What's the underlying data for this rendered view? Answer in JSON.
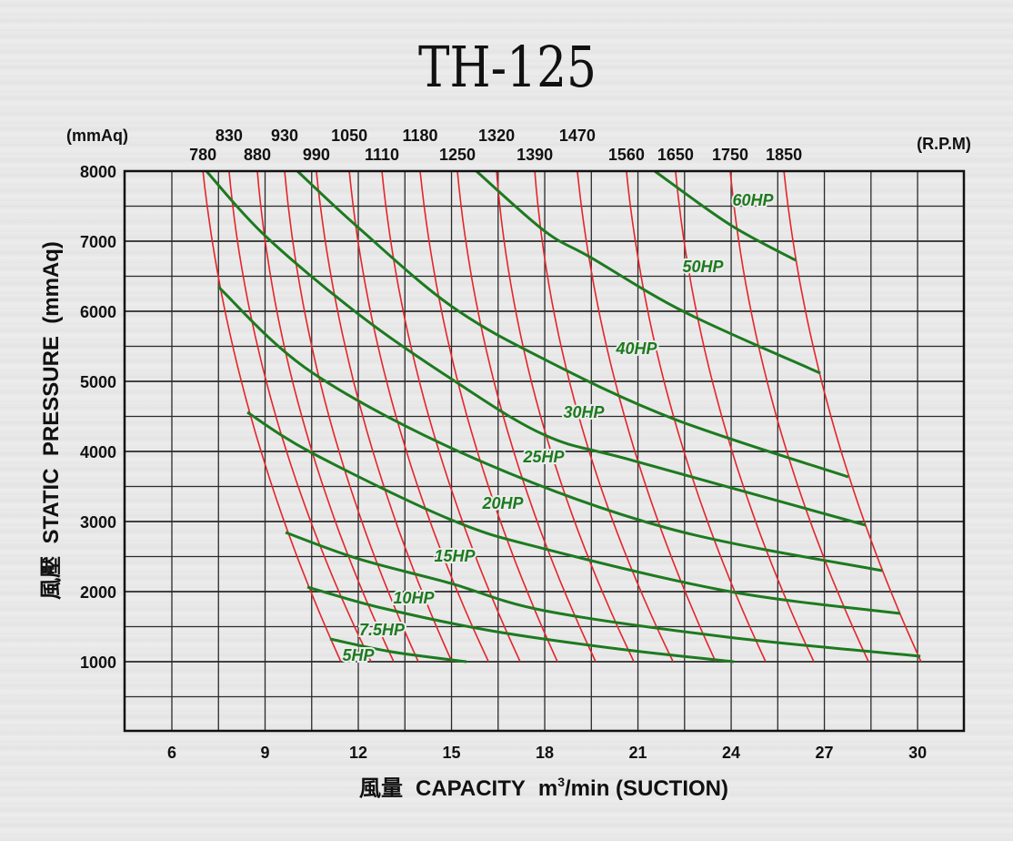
{
  "chart_data": {
    "type": "line",
    "title": "TH-125",
    "xlabel": "風量  CAPACITY  m³/min (SUCTION)",
    "xlabel_parts": {
      "cjk": "風量",
      "text": "CAPACITY",
      "unit_pre": "m",
      "unit_sup": "3",
      "unit_post": "/min (SUCTION)"
    },
    "ylabel": "風壓  STATIC  PRESSURE  (mmAq)",
    "y_unit_label": "(mmAq)",
    "rpm_unit_label": "(R.P.M)",
    "xlim": [
      4.5,
      31.5
    ],
    "ylim": [
      0,
      8000
    ],
    "x_ticks": [
      6,
      9,
      12,
      15,
      18,
      21,
      24,
      27,
      30
    ],
    "y_ticks": [
      1000,
      2000,
      3000,
      4000,
      5000,
      6000,
      7000,
      8000
    ],
    "grid": {
      "x_step": 1.5,
      "y_step": 500
    },
    "colors": {
      "rpm": "#e3262b",
      "hp": "#1d7a1f",
      "grid": "#2a2a2a"
    },
    "rpm_curves": [
      {
        "rpm": "780",
        "points": [
          [
            7.0,
            8000
          ],
          [
            8.87,
            4000
          ],
          [
            11.44,
            1000
          ]
        ]
      },
      {
        "rpm": "830",
        "points": [
          [
            7.84,
            8000
          ],
          [
            9.69,
            4000
          ],
          [
            12.41,
            1000
          ]
        ]
      },
      {
        "rpm": "880",
        "points": [
          [
            8.75,
            8000
          ],
          [
            10.51,
            4000
          ],
          [
            13.14,
            1000
          ]
        ]
      },
      {
        "rpm": "930",
        "points": [
          [
            9.63,
            8000
          ],
          [
            11.38,
            4000
          ],
          [
            13.93,
            1000
          ]
        ]
      },
      {
        "rpm": "990",
        "points": [
          [
            10.65,
            8000
          ],
          [
            12.47,
            4000
          ],
          [
            15.01,
            1000
          ]
        ]
      },
      {
        "rpm": "1050",
        "points": [
          [
            11.71,
            8000
          ],
          [
            13.55,
            4000
          ],
          [
            16.19,
            1000
          ]
        ]
      },
      {
        "rpm": "1110",
        "points": [
          [
            12.76,
            8000
          ],
          [
            14.6,
            4000
          ],
          [
            17.21,
            1000
          ]
        ]
      },
      {
        "rpm": "1180",
        "points": [
          [
            13.99,
            8000
          ],
          [
            15.83,
            4000
          ],
          [
            18.41,
            1000
          ]
        ]
      },
      {
        "rpm": "1250",
        "points": [
          [
            15.19,
            8000
          ],
          [
            17.0,
            4000
          ],
          [
            19.64,
            1000
          ]
        ]
      },
      {
        "rpm": "1320",
        "points": [
          [
            16.45,
            8000
          ],
          [
            18.2,
            4000
          ],
          [
            20.87,
            1000
          ]
        ]
      },
      {
        "rpm": "1390",
        "points": [
          [
            17.68,
            8000
          ],
          [
            19.43,
            4000
          ],
          [
            22.13,
            1000
          ]
        ]
      },
      {
        "rpm": "1470",
        "points": [
          [
            19.05,
            8000
          ],
          [
            20.9,
            4000
          ],
          [
            23.5,
            1000
          ]
        ]
      },
      {
        "rpm": "1560",
        "points": [
          [
            20.63,
            8000
          ],
          [
            22.48,
            4000
          ],
          [
            25.11,
            1000
          ]
        ]
      },
      {
        "rpm": "1650",
        "points": [
          [
            22.21,
            8000
          ],
          [
            24.03,
            4000
          ],
          [
            26.66,
            1000
          ]
        ]
      },
      {
        "rpm": "1750",
        "points": [
          [
            23.97,
            8000
          ],
          [
            25.79,
            4000
          ],
          [
            28.42,
            1000
          ]
        ]
      },
      {
        "rpm": "1850",
        "points": [
          [
            25.7,
            8000
          ],
          [
            27.54,
            4000
          ],
          [
            30.11,
            1000
          ]
        ]
      }
    ],
    "hp_curves": [
      {
        "name": "60HP",
        "points": [
          [
            21.54,
            8000
          ],
          [
            23.97,
            7234
          ],
          [
            26.08,
            6727
          ]
        ]
      },
      {
        "name": "50HP",
        "points": [
          [
            15.8,
            8000
          ],
          [
            18.0,
            7143
          ],
          [
            19.49,
            6766
          ],
          [
            22.51,
            5987
          ],
          [
            26.87,
            5117
          ]
        ]
      },
      {
        "name": "40HP",
        "points": [
          [
            10.04,
            8000
          ],
          [
            12.0,
            7195
          ],
          [
            14.98,
            6078
          ],
          [
            18.0,
            5312
          ],
          [
            22.13,
            4468
          ],
          [
            27.77,
            3636
          ]
        ]
      },
      {
        "name": "30HP",
        "points": [
          [
            7.11,
            8000
          ],
          [
            9.0,
            7078
          ],
          [
            12.0,
            5961
          ],
          [
            14.98,
            5039
          ],
          [
            18.0,
            4234
          ],
          [
            20.95,
            3857
          ],
          [
            28.33,
            2948
          ]
        ]
      },
      {
        "name": "25HP",
        "points": [
          [
            7.49,
            6351
          ],
          [
            10.5,
            5130
          ],
          [
            15.69,
            3909
          ],
          [
            21.92,
            2909
          ],
          [
            28.86,
            2299
          ]
        ]
      },
      {
        "name": "20HP",
        "points": [
          [
            8.43,
            4558
          ],
          [
            10.53,
            3974
          ],
          [
            14.98,
            3026
          ],
          [
            18.0,
            2610
          ],
          [
            23.97,
            2000
          ],
          [
            29.44,
            1688
          ]
        ]
      },
      {
        "name": "15HP",
        "points": [
          [
            9.66,
            2844
          ],
          [
            12.0,
            2468
          ],
          [
            14.98,
            2117
          ],
          [
            18.0,
            1727
          ],
          [
            23.88,
            1351
          ],
          [
            30.09,
            1078
          ]
        ]
      },
      {
        "name": "10HP",
        "points": [
          [
            10.36,
            2065
          ],
          [
            12.76,
            1766
          ],
          [
            16.27,
            1442
          ],
          [
            20.37,
            1182
          ],
          [
            24.09,
            1000
          ]
        ]
      },
      {
        "name": "7.5HP",
        "points": [
          [
            11.09,
            1325
          ],
          [
            13.05,
            1143
          ],
          [
            15.48,
            1000
          ]
        ]
      }
    ],
    "hp_labels": [
      "60HP",
      "50HP",
      "40HP",
      "30HP",
      "25HP",
      "20HP",
      "15HP",
      "10HP",
      "7.5HP",
      "5HP"
    ]
  }
}
